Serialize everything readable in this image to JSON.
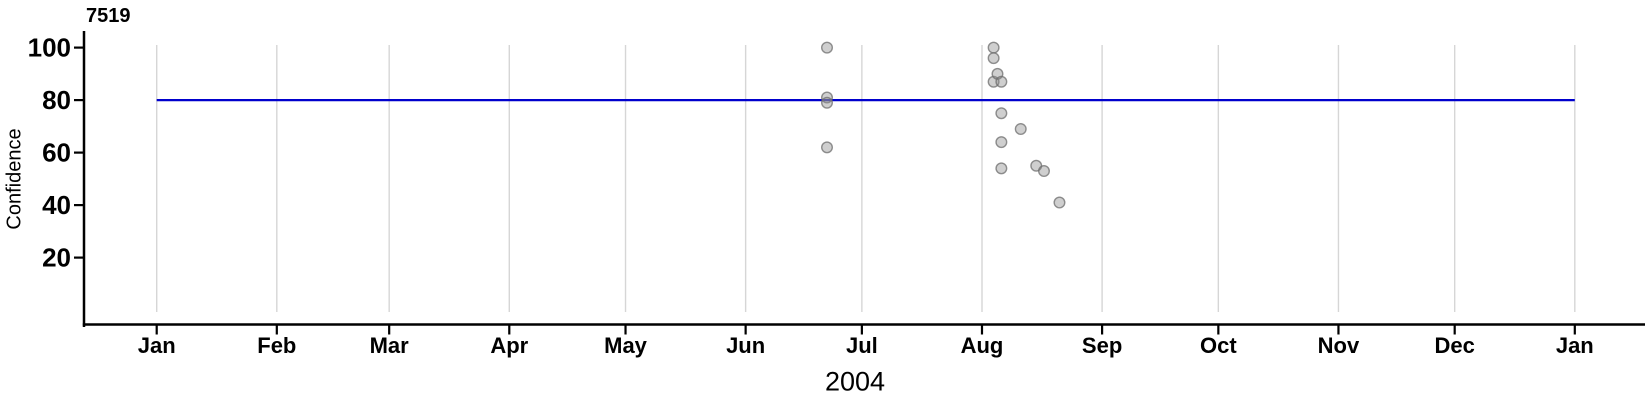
{
  "chart_data": {
    "type": "scatter",
    "title": "7519",
    "ylabel": "Confidence",
    "xlabel": "2004",
    "x_range": [
      "2004-01-01",
      "2005-01-01"
    ],
    "x_ticks": [
      {
        "label": "Jan",
        "date": "2004-01-01"
      },
      {
        "label": "Feb",
        "date": "2004-02-01"
      },
      {
        "label": "Mar",
        "date": "2004-03-01"
      },
      {
        "label": "Apr",
        "date": "2004-04-01"
      },
      {
        "label": "May",
        "date": "2004-05-01"
      },
      {
        "label": "Jun",
        "date": "2004-06-01"
      },
      {
        "label": "Jul",
        "date": "2004-07-01"
      },
      {
        "label": "Aug",
        "date": "2004-08-01"
      },
      {
        "label": "Sep",
        "date": "2004-09-01"
      },
      {
        "label": "Oct",
        "date": "2004-10-01"
      },
      {
        "label": "Nov",
        "date": "2004-11-01"
      },
      {
        "label": "Dec",
        "date": "2004-12-01"
      },
      {
        "label": "Jan",
        "date": "2005-01-01"
      }
    ],
    "y_ticks": [
      20,
      40,
      60,
      80,
      100
    ],
    "ylim": [
      -6,
      106
    ],
    "grid": "vertical-month-gridlines",
    "legend": "none",
    "reference_line": {
      "y": 80,
      "color": "#0000cd",
      "span": [
        "2004-01-01",
        "2005-01-01"
      ]
    },
    "points": [
      {
        "date": "2004-06-22",
        "confidence": 100
      },
      {
        "date": "2004-06-22",
        "confidence": 81
      },
      {
        "date": "2004-06-22",
        "confidence": 79
      },
      {
        "date": "2004-06-22",
        "confidence": 62
      },
      {
        "date": "2004-08-04",
        "confidence": 100
      },
      {
        "date": "2004-08-04",
        "confidence": 96
      },
      {
        "date": "2004-08-04",
        "confidence": 87
      },
      {
        "date": "2004-08-05",
        "confidence": 90
      },
      {
        "date": "2004-08-06",
        "confidence": 87
      },
      {
        "date": "2004-08-06",
        "confidence": 75
      },
      {
        "date": "2004-08-06",
        "confidence": 64
      },
      {
        "date": "2004-08-06",
        "confidence": 54
      },
      {
        "date": "2004-08-11",
        "confidence": 69
      },
      {
        "date": "2004-08-15",
        "confidence": 55
      },
      {
        "date": "2004-08-17",
        "confidence": 53
      },
      {
        "date": "2004-08-21",
        "confidence": 41
      }
    ],
    "colors": {
      "grid": "#d6d6d6",
      "axis": "#000000",
      "text": "#000000",
      "reference_line": "#0000cd",
      "point_fill": "#8c8c8c",
      "point_stroke": "#6e6e6e"
    },
    "point_style": {
      "fill_opacity": 0.42,
      "stroke_opacity": 0.75
    }
  }
}
